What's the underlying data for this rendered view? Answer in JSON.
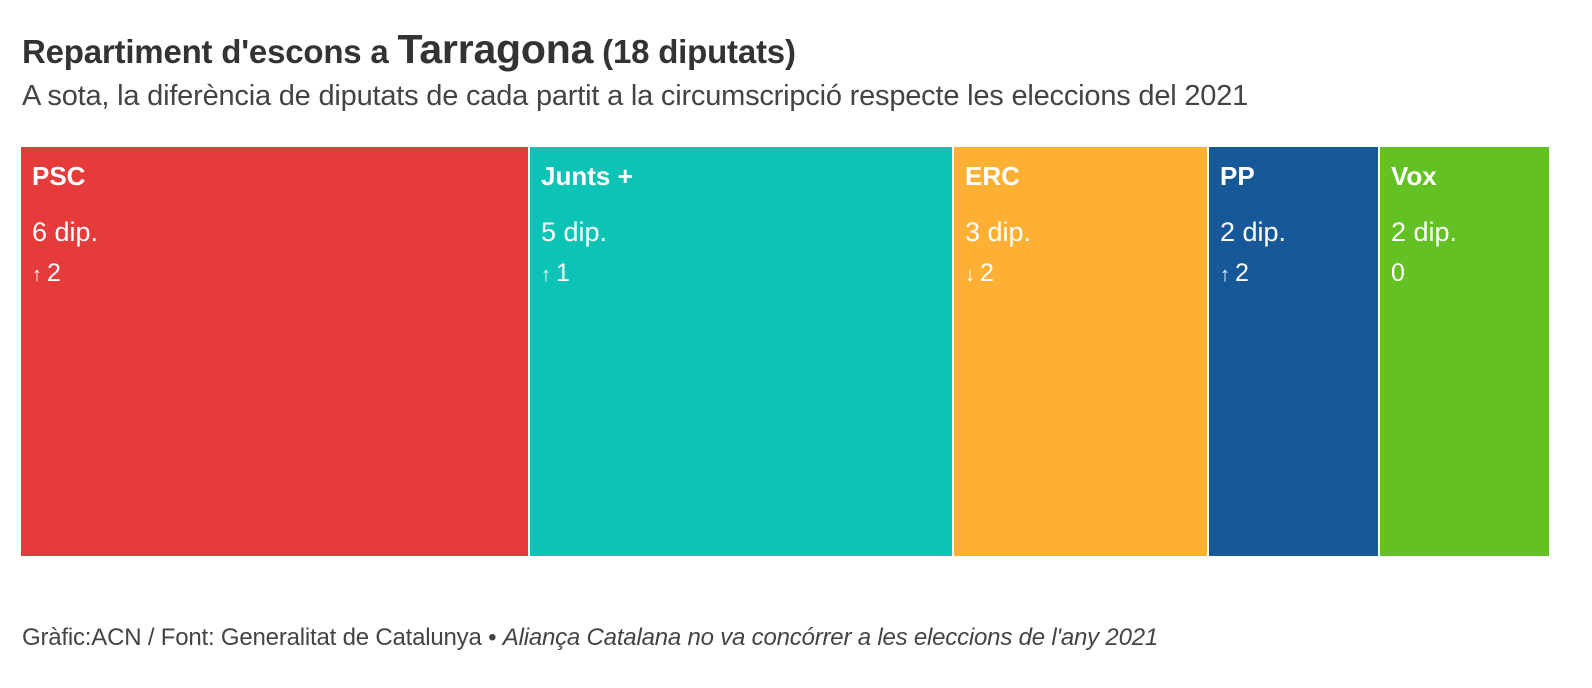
{
  "title": {
    "prefix": "Repartiment d'escons a ",
    "place": "Tarragona",
    "suffix": " (18 diputats)"
  },
  "subtitle": "A sota, la diferència de diputats de cada partit a la circumscripció respecte les eleccions del 2021",
  "footer": {
    "source": "Gràfic:ACN / Font: Generalitat de Catalunya",
    "separator": " • ",
    "note": "Aliança Catalana no va concórrer a les eleccions de l'any 2021"
  },
  "chart_data": {
    "type": "bar",
    "layout": "proportional-horizontal-blocks",
    "total": 18,
    "categories": [
      "PSC",
      "Junts +",
      "ERC",
      "PP",
      "Vox"
    ],
    "values": [
      6,
      5,
      3,
      2,
      2
    ],
    "seat_labels": [
      "6 dip.",
      "5 dip.",
      "3 dip.",
      "2 dip.",
      "2 dip."
    ],
    "changes": [
      {
        "arrow": "↑",
        "value": "2"
      },
      {
        "arrow": "↑",
        "value": "1"
      },
      {
        "arrow": "↓",
        "value": "2"
      },
      {
        "arrow": "↑",
        "value": "2"
      },
      {
        "arrow": "",
        "value": "0"
      }
    ],
    "colors": [
      "#e63b3b",
      "#0cc4b5",
      "#fdb034",
      "#175899",
      "#63c123"
    ]
  }
}
